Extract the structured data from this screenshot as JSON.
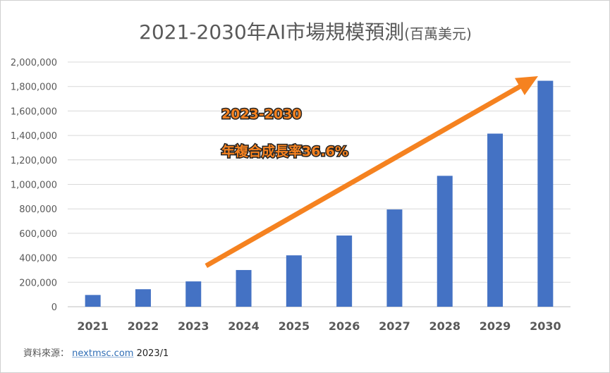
{
  "chart_data": {
    "type": "bar",
    "title": "2021-2030年AI市場規模預測",
    "title_unit": "(百萬美元)",
    "categories": [
      "2021",
      "2022",
      "2023",
      "2024",
      "2025",
      "2026",
      "2027",
      "2028",
      "2029",
      "2030"
    ],
    "values": [
      96000,
      143000,
      207000,
      300000,
      420000,
      582000,
      795000,
      1070000,
      1415000,
      1847000
    ],
    "ylim": [
      0,
      2000000
    ],
    "yticks": [
      0,
      200000,
      400000,
      600000,
      800000,
      1000000,
      1200000,
      1400000,
      1600000,
      1800000,
      2000000
    ],
    "ytick_labels": [
      "0",
      "200,000",
      "400,000",
      "600,000",
      "800,000",
      "1,000,000",
      "1,200,000",
      "1,400,000",
      "1,600,000",
      "1,800,000",
      "2,000,000"
    ],
    "grid": true,
    "bar_color": "#4472c4",
    "annotation": {
      "line1": "2023-2030",
      "line2": "年複合成長率36.6%",
      "color": "#f58220",
      "arrow_from": "2023",
      "arrow_to": "2030"
    }
  },
  "source": {
    "label": "資料來源：",
    "link": "nextmsc.com",
    "date": "2023/1"
  }
}
